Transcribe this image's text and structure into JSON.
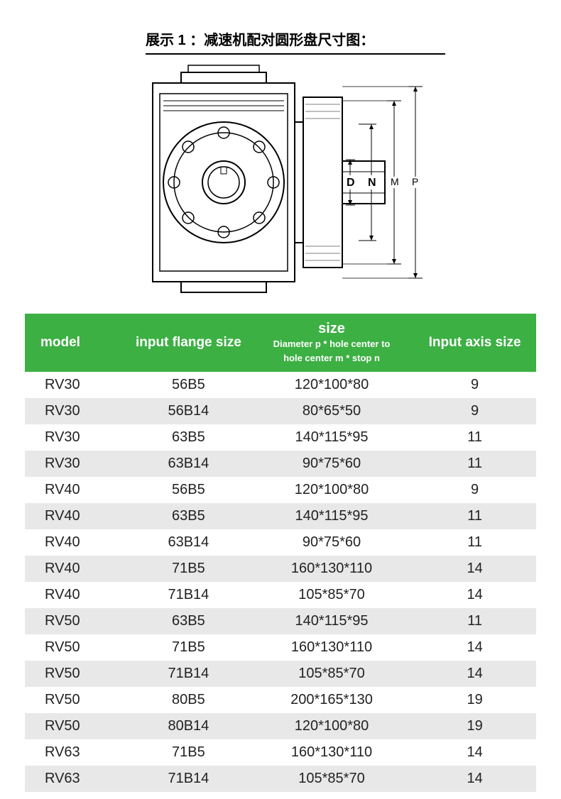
{
  "title": "展示 1 ：减速机配对圆形盘尺寸图：",
  "diagram_labels": {
    "D": "D",
    "N": "N",
    "M": "M",
    "P": "P"
  },
  "table": {
    "header_bg": "#3cb043",
    "header_color": "#ffffff",
    "row_odd_bg": "#ffffff",
    "row_even_bg": "#e8e8e8",
    "columns": {
      "model": "model",
      "flange": "input flange size",
      "size_main": "size",
      "size_sub1": "Diameter p * hole center to",
      "size_sub2": "hole center m * stop n",
      "axis": "Input axis size"
    },
    "rows": [
      {
        "model": "RV30",
        "flange": "56B5",
        "size": "120*100*80",
        "axis": "9"
      },
      {
        "model": "RV30",
        "flange": "56B14",
        "size": "80*65*50",
        "axis": "9"
      },
      {
        "model": "RV30",
        "flange": "63B5",
        "size": "140*115*95",
        "axis": "11"
      },
      {
        "model": "RV30",
        "flange": "63B14",
        "size": "90*75*60",
        "axis": "11"
      },
      {
        "model": "RV40",
        "flange": "56B5",
        "size": "120*100*80",
        "axis": "9"
      },
      {
        "model": "RV40",
        "flange": "63B5",
        "size": "140*115*95",
        "axis": "11"
      },
      {
        "model": "RV40",
        "flange": "63B14",
        "size": "90*75*60",
        "axis": "11"
      },
      {
        "model": "RV40",
        "flange": "71B5",
        "size": "160*130*110",
        "axis": "14"
      },
      {
        "model": "RV40",
        "flange": "71B14",
        "size": "105*85*70",
        "axis": "14"
      },
      {
        "model": "RV50",
        "flange": "63B5",
        "size": "140*115*95",
        "axis": "11"
      },
      {
        "model": "RV50",
        "flange": "71B5",
        "size": "160*130*110",
        "axis": "14"
      },
      {
        "model": "RV50",
        "flange": "71B14",
        "size": "105*85*70",
        "axis": "14"
      },
      {
        "model": "RV50",
        "flange": "80B5",
        "size": "200*165*130",
        "axis": "19"
      },
      {
        "model": "RV50",
        "flange": "80B14",
        "size": "120*100*80",
        "axis": "19"
      },
      {
        "model": "RV63",
        "flange": "71B5",
        "size": "160*130*110",
        "axis": "14"
      },
      {
        "model": "RV63",
        "flange": "71B14",
        "size": "105*85*70",
        "axis": "14"
      }
    ]
  }
}
